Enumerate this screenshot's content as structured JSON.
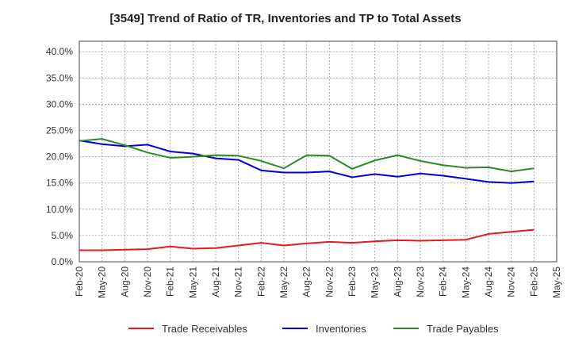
{
  "chart_data": {
    "type": "line",
    "title": "[3549]  Trend of Ratio of TR, Inventories and TP to Total Assets",
    "xlabel": "",
    "ylabel": "",
    "ylim": [
      0,
      42
    ],
    "yticks": [
      0,
      5,
      10,
      15,
      20,
      25,
      30,
      35,
      40
    ],
    "ytick_labels": [
      "0.0%",
      "5.0%",
      "10.0%",
      "15.0%",
      "20.0%",
      "25.0%",
      "30.0%",
      "35.0%",
      "40.0%"
    ],
    "x": [
      "Feb-20",
      "May-20",
      "Aug-20",
      "Nov-20",
      "Feb-21",
      "May-21",
      "Aug-21",
      "Nov-21",
      "Feb-22",
      "May-22",
      "Aug-22",
      "Nov-22",
      "Feb-23",
      "May-23",
      "Aug-23",
      "Nov-23",
      "Feb-24",
      "May-24",
      "Aug-24",
      "Nov-24",
      "Feb-25",
      "May-25"
    ],
    "grid": true,
    "legend_position": "bottom",
    "series": [
      {
        "name": "Trade Receivables",
        "color": "#e41a1c",
        "values": [
          2.2,
          2.2,
          2.3,
          2.4,
          2.9,
          2.5,
          2.6,
          3.1,
          3.6,
          3.1,
          3.5,
          3.8,
          3.6,
          3.9,
          4.1,
          4.0,
          4.1,
          4.2,
          5.3,
          5.7,
          6.1,
          null
        ]
      },
      {
        "name": "Inventories",
        "color": "#0000dd",
        "values": [
          23.1,
          22.4,
          22.0,
          22.3,
          21.0,
          20.6,
          19.7,
          19.4,
          17.4,
          17.0,
          17.0,
          17.2,
          16.1,
          16.7,
          16.2,
          16.8,
          16.4,
          15.8,
          15.2,
          15.0,
          15.3,
          null
        ]
      },
      {
        "name": "Trade Payables",
        "color": "#2a8a2a",
        "values": [
          23.0,
          23.4,
          22.2,
          20.8,
          19.8,
          20.0,
          20.3,
          20.2,
          19.2,
          17.8,
          20.3,
          20.2,
          17.7,
          19.3,
          20.3,
          19.2,
          18.4,
          17.9,
          18.0,
          17.2,
          17.8,
          null
        ]
      }
    ]
  }
}
